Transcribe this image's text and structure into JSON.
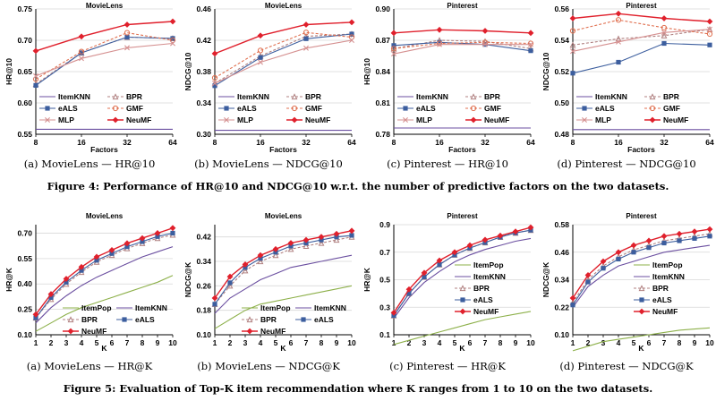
{
  "figure4_caption": "Figure 4: Performance of HR@10 and NDCG@10 w.r.t. the number of predictive factors on the two datasets.",
  "figure5_caption": "Figure 5: Evaluation of Top-K item recommendation where K ranges from 1 to 10 on the two datasets.",
  "colors": {
    "ItemPop": "#8db04a",
    "ItemKNN": "#6b4fa0",
    "BPR": "#b08080",
    "eALS": "#3c5e9e",
    "GMF": "#e07050",
    "MLP": "#d59090",
    "NeuMF": "#e0202c"
  },
  "chart_data": [
    {
      "type": "line",
      "id": "fig4a",
      "title": "MovieLens",
      "caption": "(a) MovieLens — HR@10",
      "xlabel": "Factors",
      "ylabel": "HR@10",
      "x": [
        8,
        16,
        32,
        64
      ],
      "xlim": [
        8,
        64
      ],
      "ylim": [
        0.55,
        0.75
      ],
      "yticks": [
        0.55,
        0.6,
        0.65,
        0.7,
        0.75
      ],
      "ydec": 2,
      "series": [
        {
          "name": "ItemKNN",
          "values": [
            0.558,
            0.558,
            0.558,
            0.558
          ]
        },
        {
          "name": "BPR",
          "values": [
            0.63,
            0.68,
            0.705,
            0.703
          ]
        },
        {
          "name": "eALS",
          "values": [
            0.628,
            0.68,
            0.705,
            0.703
          ]
        },
        {
          "name": "GMF",
          "values": [
            0.638,
            0.682,
            0.712,
            0.7
          ]
        },
        {
          "name": "MLP",
          "values": [
            0.643,
            0.671,
            0.688,
            0.695
          ]
        },
        {
          "name": "NeuMF",
          "values": [
            0.683,
            0.706,
            0.725,
            0.73
          ]
        }
      ],
      "legend": [
        "ItemKNN",
        "BPR",
        "eALS",
        "GMF",
        "MLP",
        "NeuMF"
      ]
    },
    {
      "type": "line",
      "id": "fig4b",
      "title": "MovieLens",
      "caption": "(b) MovieLens — NDCG@10",
      "xlabel": "Factors",
      "ylabel": "NDCG@10",
      "x": [
        8,
        16,
        32,
        64
      ],
      "xlim": [
        8,
        64
      ],
      "ylim": [
        0.3,
        0.46
      ],
      "yticks": [
        0.3,
        0.34,
        0.38,
        0.42,
        0.46
      ],
      "ydec": 2,
      "series": [
        {
          "name": "ItemKNN",
          "values": [
            0.305,
            0.305,
            0.305,
            0.305
          ]
        },
        {
          "name": "BPR",
          "values": [
            0.365,
            0.4,
            0.425,
            0.428
          ]
        },
        {
          "name": "eALS",
          "values": [
            0.362,
            0.398,
            0.422,
            0.428
          ]
        },
        {
          "name": "GMF",
          "values": [
            0.372,
            0.407,
            0.43,
            0.424
          ]
        },
        {
          "name": "MLP",
          "values": [
            0.365,
            0.392,
            0.41,
            0.42
          ]
        },
        {
          "name": "NeuMF",
          "values": [
            0.403,
            0.426,
            0.44,
            0.443
          ]
        }
      ],
      "legend": [
        "ItemKNN",
        "BPR",
        "eALS",
        "GMF",
        "MLP",
        "NeuMF"
      ]
    },
    {
      "type": "line",
      "id": "fig4c",
      "title": "Pinterest",
      "caption": "(c) Pinterest — HR@10",
      "xlabel": "Factors",
      "ylabel": "HR@10",
      "x": [
        8,
        16,
        32,
        64
      ],
      "xlim": [
        8,
        64
      ],
      "ylim": [
        0.78,
        0.9
      ],
      "yticks": [
        0.78,
        0.81,
        0.84,
        0.87,
        0.9
      ],
      "ydec": 2,
      "series": [
        {
          "name": "ItemKNN",
          "values": [
            0.786,
            0.786,
            0.786,
            0.786
          ]
        },
        {
          "name": "BPR",
          "values": [
            0.862,
            0.87,
            0.869,
            0.862
          ]
        },
        {
          "name": "eALS",
          "values": [
            0.865,
            0.868,
            0.866,
            0.86
          ]
        },
        {
          "name": "GMF",
          "values": [
            0.862,
            0.867,
            0.868,
            0.867
          ]
        },
        {
          "name": "MLP",
          "values": [
            0.857,
            0.866,
            0.866,
            0.866
          ]
        },
        {
          "name": "NeuMF",
          "values": [
            0.877,
            0.88,
            0.879,
            0.877
          ]
        }
      ],
      "legend": [
        "ItemKNN",
        "BPR",
        "eALS",
        "GMF",
        "MLP",
        "NeuMF"
      ]
    },
    {
      "type": "line",
      "id": "fig4d",
      "title": "Pinterest",
      "caption": "(d) Pinterest — NDCG@10",
      "xlabel": "Factors",
      "ylabel": "NDCG@10",
      "x": [
        8,
        16,
        32,
        64
      ],
      "xlim": [
        8,
        64
      ],
      "ylim": [
        0.48,
        0.56
      ],
      "yticks": [
        0.48,
        0.5,
        0.52,
        0.54,
        0.56
      ],
      "ydec": 2,
      "series": [
        {
          "name": "ItemKNN",
          "values": [
            0.483,
            0.483,
            0.483,
            0.483
          ]
        },
        {
          "name": "BPR",
          "values": [
            0.537,
            0.541,
            0.543,
            0.547
          ]
        },
        {
          "name": "eALS",
          "values": [
            0.519,
            0.526,
            0.538,
            0.537
          ]
        },
        {
          "name": "GMF",
          "values": [
            0.546,
            0.553,
            0.548,
            0.544
          ]
        },
        {
          "name": "MLP",
          "values": [
            0.533,
            0.539,
            0.545,
            0.547
          ]
        },
        {
          "name": "NeuMF",
          "values": [
            0.554,
            0.557,
            0.554,
            0.552
          ]
        }
      ],
      "legend": [
        "ItemKNN",
        "BPR",
        "eALS",
        "GMF",
        "MLP",
        "NeuMF"
      ]
    },
    {
      "type": "line",
      "id": "fig5a",
      "title": "MovieLens",
      "caption": "(a) MovieLens — HR@K",
      "xlabel": "K",
      "ylabel": "HR@K",
      "x": [
        1,
        2,
        3,
        4,
        5,
        6,
        7,
        8,
        9,
        10
      ],
      "xlim": [
        1,
        10
      ],
      "ylim": [
        0.1,
        0.75
      ],
      "yticks": [
        0.1,
        0.25,
        0.4,
        0.55,
        0.7
      ],
      "ydec": 2,
      "series": [
        {
          "name": "ItemPop",
          "values": [
            0.12,
            0.17,
            0.22,
            0.26,
            0.29,
            0.32,
            0.35,
            0.38,
            0.41,
            0.45
          ]
        },
        {
          "name": "ItemKNN",
          "values": [
            0.17,
            0.26,
            0.33,
            0.39,
            0.44,
            0.48,
            0.52,
            0.56,
            0.59,
            0.62
          ]
        },
        {
          "name": "BPR",
          "values": [
            0.2,
            0.31,
            0.4,
            0.47,
            0.53,
            0.57,
            0.61,
            0.64,
            0.67,
            0.69
          ]
        },
        {
          "name": "eALS",
          "values": [
            0.2,
            0.32,
            0.41,
            0.48,
            0.54,
            0.58,
            0.62,
            0.65,
            0.68,
            0.7
          ]
        },
        {
          "name": "NeuMF",
          "values": [
            0.22,
            0.34,
            0.43,
            0.5,
            0.56,
            0.6,
            0.64,
            0.67,
            0.7,
            0.73
          ]
        }
      ],
      "legend": [
        "ItemPop",
        "ItemKNN",
        "BPR",
        "eALS",
        "NeuMF"
      ]
    },
    {
      "type": "line",
      "id": "fig5b",
      "title": "MovieLens",
      "caption": "(b) MovieLens — NDCG@K",
      "xlabel": "K",
      "ylabel": "NDCG@K",
      "x": [
        1,
        2,
        3,
        4,
        5,
        6,
        7,
        8,
        9,
        10
      ],
      "xlim": [
        1,
        10
      ],
      "ylim": [
        0.1,
        0.46
      ],
      "yticks": [
        0.1,
        0.18,
        0.26,
        0.34,
        0.42
      ],
      "ydec": 2,
      "series": [
        {
          "name": "ItemPop",
          "values": [
            0.12,
            0.15,
            0.18,
            0.2,
            0.21,
            0.22,
            0.23,
            0.24,
            0.25,
            0.26
          ]
        },
        {
          "name": "ItemKNN",
          "values": [
            0.17,
            0.22,
            0.25,
            0.28,
            0.3,
            0.32,
            0.33,
            0.34,
            0.35,
            0.36
          ]
        },
        {
          "name": "BPR",
          "values": [
            0.2,
            0.26,
            0.31,
            0.34,
            0.36,
            0.38,
            0.39,
            0.4,
            0.41,
            0.42
          ]
        },
        {
          "name": "eALS",
          "values": [
            0.2,
            0.27,
            0.32,
            0.35,
            0.37,
            0.39,
            0.4,
            0.41,
            0.42,
            0.425
          ]
        },
        {
          "name": "NeuMF",
          "values": [
            0.22,
            0.29,
            0.33,
            0.36,
            0.38,
            0.4,
            0.41,
            0.42,
            0.43,
            0.44
          ]
        }
      ],
      "legend": [
        "ItemPop",
        "ItemKNN",
        "BPR",
        "eALS",
        "NeuMF"
      ]
    },
    {
      "type": "line",
      "id": "fig5c",
      "title": "Pinterest",
      "caption": "(c) Pinterest — HR@K",
      "xlabel": "K",
      "ylabel": "HR@K",
      "x": [
        1,
        2,
        3,
        4,
        5,
        6,
        7,
        8,
        9,
        10
      ],
      "xlim": [
        1,
        10
      ],
      "ylim": [
        0.1,
        0.9
      ],
      "yticks": [
        0.1,
        0.3,
        0.5,
        0.7,
        0.9
      ],
      "ydec": 1,
      "series": [
        {
          "name": "ItemPop",
          "values": [
            0.03,
            0.06,
            0.09,
            0.12,
            0.15,
            0.18,
            0.21,
            0.23,
            0.25,
            0.27
          ]
        },
        {
          "name": "ItemKNN",
          "values": [
            0.22,
            0.37,
            0.48,
            0.56,
            0.63,
            0.68,
            0.72,
            0.75,
            0.78,
            0.8
          ]
        },
        {
          "name": "BPR",
          "values": [
            0.24,
            0.4,
            0.52,
            0.61,
            0.68,
            0.73,
            0.77,
            0.81,
            0.84,
            0.86
          ]
        },
        {
          "name": "eALS",
          "values": [
            0.24,
            0.4,
            0.52,
            0.61,
            0.68,
            0.73,
            0.77,
            0.81,
            0.84,
            0.86
          ]
        },
        {
          "name": "NeuMF",
          "values": [
            0.26,
            0.43,
            0.55,
            0.64,
            0.7,
            0.75,
            0.79,
            0.82,
            0.85,
            0.88
          ]
        }
      ],
      "legend": [
        "ItemPop",
        "ItemKNN",
        "BPR",
        "eALS",
        "NeuMF"
      ]
    },
    {
      "type": "line",
      "id": "fig5d",
      "title": "Pinterest",
      "caption": "(d) Pinterest — NDCG@K",
      "xlabel": "K",
      "ylabel": "NDCG@K",
      "x": [
        1,
        2,
        3,
        4,
        5,
        6,
        7,
        8,
        9,
        10
      ],
      "xlim": [
        1,
        10
      ],
      "ylim": [
        0.1,
        0.58
      ],
      "yticks": [
        0.1,
        0.22,
        0.34,
        0.46,
        0.58
      ],
      "ydec": 2,
      "series": [
        {
          "name": "ItemPop",
          "values": [
            0.03,
            0.05,
            0.07,
            0.08,
            0.09,
            0.1,
            0.11,
            0.12,
            0.125,
            0.13
          ]
        },
        {
          "name": "ItemKNN",
          "values": [
            0.22,
            0.31,
            0.36,
            0.4,
            0.42,
            0.44,
            0.46,
            0.47,
            0.48,
            0.49
          ]
        },
        {
          "name": "BPR",
          "values": [
            0.24,
            0.34,
            0.4,
            0.44,
            0.47,
            0.49,
            0.51,
            0.52,
            0.53,
            0.54
          ]
        },
        {
          "name": "eALS",
          "values": [
            0.23,
            0.33,
            0.39,
            0.43,
            0.46,
            0.48,
            0.5,
            0.51,
            0.52,
            0.53
          ]
        },
        {
          "name": "NeuMF",
          "values": [
            0.26,
            0.36,
            0.42,
            0.46,
            0.49,
            0.51,
            0.53,
            0.54,
            0.55,
            0.56
          ]
        }
      ],
      "legend": [
        "ItemPop",
        "ItemKNN",
        "BPR",
        "eALS",
        "NeuMF"
      ]
    }
  ]
}
